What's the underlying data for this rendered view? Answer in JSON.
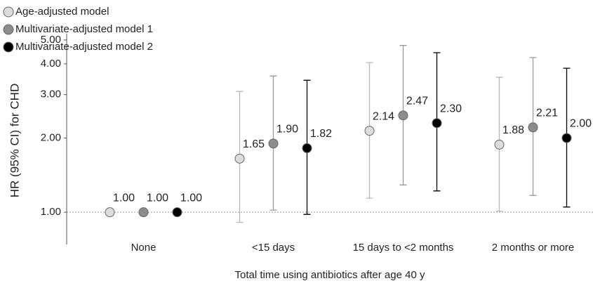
{
  "chart_data": {
    "type": "errorbar-dot",
    "y_label": "HR (95% CI) for CHD",
    "x_label": "Total time using antibiotics after age 40 y",
    "categories": [
      "None",
      "<15 days",
      "15 days to <2 months",
      "2 months or more"
    ],
    "series": [
      {
        "name": "Age-adjusted model",
        "color": "#dcdcdc",
        "bar_color": "#b8b8b8",
        "values": [
          1.0,
          1.65,
          2.14,
          1.88
        ],
        "value_labels": [
          "1.00",
          "1.65",
          "2.14",
          "1.88"
        ],
        "lower": [
          null,
          0.91,
          1.14,
          1.01
        ],
        "upper": [
          null,
          3.09,
          4.05,
          3.53
        ]
      },
      {
        "name": "Multivariate-adjusted model 1",
        "color": "#8c8c8c",
        "bar_color": "#9a9a9a",
        "values": [
          1.0,
          1.9,
          2.47,
          2.21
        ],
        "value_labels": [
          "1.00",
          "1.90",
          "2.47",
          "2.21"
        ],
        "lower": [
          null,
          1.02,
          1.29,
          1.17
        ],
        "upper": [
          null,
          3.57,
          4.75,
          4.24
        ]
      },
      {
        "name": "Multivariate-adjusted model 2",
        "color": "#000000",
        "bar_color": "#000000",
        "values": [
          1.0,
          1.82,
          2.3,
          2.0
        ],
        "value_labels": [
          "1.00",
          "1.82",
          "2.30",
          "2.00"
        ],
        "lower": [
          null,
          0.98,
          1.22,
          1.05
        ],
        "upper": [
          null,
          3.43,
          4.44,
          3.84
        ]
      }
    ],
    "log_scale": true,
    "ylim": [
      0.74,
      5.3
    ],
    "yticks": [
      {
        "value": 1,
        "label": "1.00"
      },
      {
        "value": 2,
        "label": "2.00"
      },
      {
        "value": 3,
        "label": "3.00"
      },
      {
        "value": 4,
        "label": "4.00"
      },
      {
        "value": 5,
        "label": "5.00"
      }
    ],
    "reference_line": 1,
    "legend": "top-left"
  }
}
